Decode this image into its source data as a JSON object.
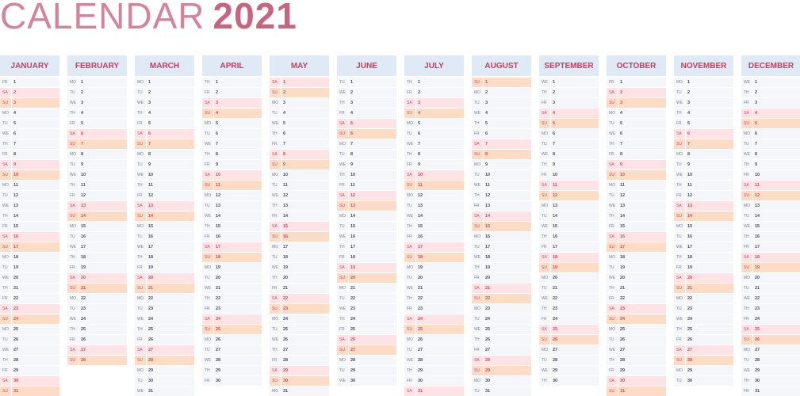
{
  "title": {
    "text": "CALENDAR",
    "year": "2021"
  },
  "weekend_colors": {
    "SA": "#fde3e6",
    "SU": "#fddcc6"
  },
  "months": [
    {
      "name": "JANUARY",
      "days": [
        [
          "FR",
          1
        ],
        [
          "SA",
          2
        ],
        [
          "SU",
          3
        ],
        [
          "MO",
          4
        ],
        [
          "TU",
          5
        ],
        [
          "WE",
          6
        ],
        [
          "TH",
          7
        ],
        [
          "FR",
          8
        ],
        [
          "SA",
          9
        ],
        [
          "SU",
          10
        ],
        [
          "MO",
          11
        ],
        [
          "TU",
          12
        ],
        [
          "WE",
          13
        ],
        [
          "TH",
          14
        ],
        [
          "FR",
          15
        ],
        [
          "SA",
          16
        ],
        [
          "SU",
          17
        ],
        [
          "MO",
          18
        ],
        [
          "TU",
          19
        ],
        [
          "WE",
          20
        ],
        [
          "TH",
          21
        ],
        [
          "FR",
          22
        ],
        [
          "SA",
          23
        ],
        [
          "SU",
          24
        ],
        [
          "MO",
          25
        ],
        [
          "TU",
          26
        ],
        [
          "WE",
          27
        ],
        [
          "TH",
          28
        ],
        [
          "FR",
          29
        ],
        [
          "SA",
          30
        ],
        [
          "SU",
          31
        ]
      ]
    },
    {
      "name": "FEBRUARY",
      "days": [
        [
          "MO",
          1
        ],
        [
          "TU",
          2
        ],
        [
          "WE",
          3
        ],
        [
          "TH",
          4
        ],
        [
          "FR",
          5
        ],
        [
          "SA",
          6
        ],
        [
          "SU",
          7
        ],
        [
          "MO",
          8
        ],
        [
          "TU",
          9
        ],
        [
          "WE",
          10
        ],
        [
          "TH",
          11
        ],
        [
          "FR",
          12
        ],
        [
          "SA",
          13
        ],
        [
          "SU",
          14
        ],
        [
          "MO",
          15
        ],
        [
          "TU",
          16
        ],
        [
          "WE",
          17
        ],
        [
          "TH",
          18
        ],
        [
          "FR",
          19
        ],
        [
          "SA",
          20
        ],
        [
          "SU",
          21
        ],
        [
          "MO",
          22
        ],
        [
          "TU",
          23
        ],
        [
          "WE",
          24
        ],
        [
          "TH",
          25
        ],
        [
          "FR",
          26
        ],
        [
          "SA",
          27
        ],
        [
          "SU",
          28
        ]
      ]
    },
    {
      "name": "MARCH",
      "days": [
        [
          "MO",
          1
        ],
        [
          "TU",
          2
        ],
        [
          "WE",
          3
        ],
        [
          "TH",
          4
        ],
        [
          "FR",
          5
        ],
        [
          "SA",
          6
        ],
        [
          "SU",
          7
        ],
        [
          "MO",
          8
        ],
        [
          "TU",
          9
        ],
        [
          "WE",
          10
        ],
        [
          "TH",
          11
        ],
        [
          "FR",
          12
        ],
        [
          "SA",
          13
        ],
        [
          "SU",
          14
        ],
        [
          "MO",
          15
        ],
        [
          "TU",
          16
        ],
        [
          "WE",
          17
        ],
        [
          "TH",
          18
        ],
        [
          "FR",
          19
        ],
        [
          "SA",
          20
        ],
        [
          "SU",
          21
        ],
        [
          "MO",
          22
        ],
        [
          "TU",
          23
        ],
        [
          "WE",
          24
        ],
        [
          "TH",
          25
        ],
        [
          "FR",
          26
        ],
        [
          "SA",
          27
        ],
        [
          "SU",
          28
        ],
        [
          "MO",
          29
        ],
        [
          "TU",
          30
        ],
        [
          "WE",
          31
        ]
      ]
    },
    {
      "name": "APRIL",
      "days": [
        [
          "TH",
          1
        ],
        [
          "FR",
          2
        ],
        [
          "SA",
          3
        ],
        [
          "SU",
          4
        ],
        [
          "MO",
          5
        ],
        [
          "TU",
          6
        ],
        [
          "WE",
          7
        ],
        [
          "TH",
          8
        ],
        [
          "FR",
          9
        ],
        [
          "SA",
          10
        ],
        [
          "SU",
          11
        ],
        [
          "MO",
          12
        ],
        [
          "TU",
          13
        ],
        [
          "WE",
          14
        ],
        [
          "TH",
          15
        ],
        [
          "FR",
          16
        ],
        [
          "SA",
          17
        ],
        [
          "SU",
          18
        ],
        [
          "MO",
          19
        ],
        [
          "TU",
          20
        ],
        [
          "WE",
          21
        ],
        [
          "TH",
          22
        ],
        [
          "FR",
          23
        ],
        [
          "SA",
          24
        ],
        [
          "SU",
          25
        ],
        [
          "MO",
          26
        ],
        [
          "TU",
          27
        ],
        [
          "WE",
          28
        ],
        [
          "TH",
          29
        ],
        [
          "FR",
          30
        ]
      ]
    },
    {
      "name": "MAY",
      "days": [
        [
          "SA",
          1
        ],
        [
          "SU",
          2
        ],
        [
          "MO",
          3
        ],
        [
          "TU",
          4
        ],
        [
          "WE",
          5
        ],
        [
          "TH",
          6
        ],
        [
          "FR",
          7
        ],
        [
          "SA",
          8
        ],
        [
          "SU",
          9
        ],
        [
          "MO",
          10
        ],
        [
          "TU",
          11
        ],
        [
          "WE",
          12
        ],
        [
          "TH",
          13
        ],
        [
          "FR",
          14
        ],
        [
          "SA",
          15
        ],
        [
          "SU",
          16
        ],
        [
          "MO",
          17
        ],
        [
          "TU",
          18
        ],
        [
          "WE",
          19
        ],
        [
          "TH",
          20
        ],
        [
          "FR",
          21
        ],
        [
          "SA",
          22
        ],
        [
          "SU",
          23
        ],
        [
          "MO",
          24
        ],
        [
          "TU",
          25
        ],
        [
          "WE",
          26
        ],
        [
          "TH",
          27
        ],
        [
          "FR",
          28
        ],
        [
          "SA",
          29
        ],
        [
          "SU",
          30
        ],
        [
          "MO",
          31
        ]
      ]
    },
    {
      "name": "JUNE",
      "days": [
        [
          "TU",
          1
        ],
        [
          "WE",
          2
        ],
        [
          "TH",
          3
        ],
        [
          "FR",
          4
        ],
        [
          "SA",
          5
        ],
        [
          "SU",
          6
        ],
        [
          "MO",
          7
        ],
        [
          "TU",
          8
        ],
        [
          "WE",
          9
        ],
        [
          "TH",
          10
        ],
        [
          "FR",
          11
        ],
        [
          "SA",
          12
        ],
        [
          "SU",
          13
        ],
        [
          "MO",
          14
        ],
        [
          "TU",
          15
        ],
        [
          "WE",
          16
        ],
        [
          "TH",
          17
        ],
        [
          "FR",
          18
        ],
        [
          "SA",
          19
        ],
        [
          "SU",
          20
        ],
        [
          "MO",
          21
        ],
        [
          "TU",
          22
        ],
        [
          "WE",
          23
        ],
        [
          "TH",
          24
        ],
        [
          "FR",
          25
        ],
        [
          "SA",
          26
        ],
        [
          "SU",
          27
        ],
        [
          "MO",
          28
        ],
        [
          "TU",
          29
        ],
        [
          "WE",
          30
        ]
      ]
    },
    {
      "name": "JULY",
      "days": [
        [
          "TH",
          1
        ],
        [
          "FR",
          2
        ],
        [
          "SA",
          3
        ],
        [
          "SU",
          4
        ],
        [
          "MO",
          5
        ],
        [
          "TU",
          6
        ],
        [
          "WE",
          7
        ],
        [
          "TH",
          8
        ],
        [
          "FR",
          9
        ],
        [
          "SA",
          10
        ],
        [
          "SU",
          11
        ],
        [
          "MO",
          12
        ],
        [
          "TU",
          13
        ],
        [
          "WE",
          14
        ],
        [
          "TH",
          15
        ],
        [
          "FR",
          16
        ],
        [
          "SA",
          17
        ],
        [
          "SU",
          18
        ],
        [
          "MO",
          19
        ],
        [
          "TU",
          20
        ],
        [
          "WE",
          21
        ],
        [
          "TH",
          22
        ],
        [
          "FR",
          23
        ],
        [
          "SA",
          24
        ],
        [
          "SU",
          25
        ],
        [
          "MO",
          26
        ],
        [
          "TU",
          27
        ],
        [
          "WE",
          28
        ],
        [
          "TH",
          29
        ],
        [
          "FR",
          30
        ],
        [
          "SA",
          31
        ]
      ]
    },
    {
      "name": "AUGUST",
      "days": [
        [
          "SU",
          1
        ],
        [
          "MO",
          2
        ],
        [
          "TU",
          3
        ],
        [
          "WE",
          4
        ],
        [
          "TH",
          5
        ],
        [
          "FR",
          6
        ],
        [
          "SA",
          7
        ],
        [
          "SU",
          8
        ],
        [
          "MO",
          9
        ],
        [
          "TU",
          10
        ],
        [
          "WE",
          11
        ],
        [
          "TH",
          12
        ],
        [
          "FR",
          13
        ],
        [
          "SA",
          14
        ],
        [
          "SU",
          15
        ],
        [
          "MO",
          16
        ],
        [
          "TU",
          17
        ],
        [
          "WE",
          18
        ],
        [
          "TH",
          19
        ],
        [
          "FR",
          20
        ],
        [
          "SA",
          21
        ],
        [
          "SU",
          22
        ],
        [
          "MO",
          23
        ],
        [
          "TU",
          24
        ],
        [
          "WE",
          25
        ],
        [
          "TH",
          26
        ],
        [
          "FR",
          27
        ],
        [
          "SA",
          28
        ],
        [
          "SU",
          29
        ],
        [
          "MO",
          30
        ],
        [
          "TU",
          31
        ]
      ]
    },
    {
      "name": "SEPTEMBER",
      "days": [
        [
          "WE",
          1
        ],
        [
          "TH",
          2
        ],
        [
          "FR",
          3
        ],
        [
          "SA",
          4
        ],
        [
          "SU",
          5
        ],
        [
          "MO",
          6
        ],
        [
          "TU",
          7
        ],
        [
          "WE",
          8
        ],
        [
          "TH",
          9
        ],
        [
          "FR",
          10
        ],
        [
          "SA",
          11
        ],
        [
          "SU",
          12
        ],
        [
          "MO",
          13
        ],
        [
          "TU",
          14
        ],
        [
          "WE",
          15
        ],
        [
          "TH",
          16
        ],
        [
          "FR",
          17
        ],
        [
          "SA",
          18
        ],
        [
          "SU",
          19
        ],
        [
          "MO",
          20
        ],
        [
          "TU",
          21
        ],
        [
          "WE",
          22
        ],
        [
          "TH",
          23
        ],
        [
          "FR",
          24
        ],
        [
          "SA",
          25
        ],
        [
          "SU",
          26
        ],
        [
          "MO",
          27
        ],
        [
          "TU",
          28
        ],
        [
          "WE",
          29
        ],
        [
          "TH",
          30
        ]
      ]
    },
    {
      "name": "OCTOBER",
      "days": [
        [
          "FR",
          1
        ],
        [
          "SA",
          2
        ],
        [
          "SU",
          3
        ],
        [
          "MO",
          4
        ],
        [
          "TU",
          5
        ],
        [
          "WE",
          6
        ],
        [
          "TH",
          7
        ],
        [
          "FR",
          8
        ],
        [
          "SA",
          9
        ],
        [
          "SU",
          10
        ],
        [
          "MO",
          11
        ],
        [
          "TU",
          12
        ],
        [
          "WE",
          13
        ],
        [
          "TH",
          14
        ],
        [
          "FR",
          15
        ],
        [
          "SA",
          16
        ],
        [
          "SU",
          17
        ],
        [
          "MO",
          18
        ],
        [
          "TU",
          19
        ],
        [
          "WE",
          20
        ],
        [
          "TH",
          21
        ],
        [
          "FR",
          22
        ],
        [
          "SA",
          23
        ],
        [
          "SU",
          24
        ],
        [
          "MO",
          25
        ],
        [
          "TU",
          26
        ],
        [
          "WE",
          27
        ],
        [
          "TH",
          28
        ],
        [
          "FR",
          29
        ],
        [
          "SA",
          30
        ],
        [
          "SU",
          31
        ]
      ]
    },
    {
      "name": "NOVEMBER",
      "days": [
        [
          "MO",
          1
        ],
        [
          "TU",
          2
        ],
        [
          "WE",
          3
        ],
        [
          "TH",
          4
        ],
        [
          "FR",
          5
        ],
        [
          "SA",
          6
        ],
        [
          "SU",
          7
        ],
        [
          "MO",
          8
        ],
        [
          "TU",
          9
        ],
        [
          "WE",
          10
        ],
        [
          "TH",
          11
        ],
        [
          "FR",
          12
        ],
        [
          "SA",
          13
        ],
        [
          "SU",
          14
        ],
        [
          "MO",
          15
        ],
        [
          "TU",
          16
        ],
        [
          "WE",
          17
        ],
        [
          "TH",
          18
        ],
        [
          "FR",
          19
        ],
        [
          "SA",
          20
        ],
        [
          "SU",
          21
        ],
        [
          "MO",
          22
        ],
        [
          "TU",
          23
        ],
        [
          "WE",
          24
        ],
        [
          "TH",
          25
        ],
        [
          "FR",
          26
        ],
        [
          "SA",
          27
        ],
        [
          "SU",
          28
        ],
        [
          "MO",
          29
        ],
        [
          "TU",
          30
        ]
      ]
    },
    {
      "name": "DECEMBER",
      "days": [
        [
          "WE",
          1
        ],
        [
          "TH",
          2
        ],
        [
          "FR",
          3
        ],
        [
          "SA",
          4
        ],
        [
          "SU",
          5
        ],
        [
          "MO",
          6
        ],
        [
          "TU",
          7
        ],
        [
          "WE",
          8
        ],
        [
          "TH",
          9
        ],
        [
          "FR",
          10
        ],
        [
          "SA",
          11
        ],
        [
          "SU",
          12
        ],
        [
          "MO",
          13
        ],
        [
          "TU",
          14
        ],
        [
          "WE",
          15
        ],
        [
          "TH",
          16
        ],
        [
          "FR",
          17
        ],
        [
          "SA",
          18
        ],
        [
          "SU",
          19
        ],
        [
          "MO",
          20
        ],
        [
          "TU",
          21
        ],
        [
          "WE",
          22
        ],
        [
          "TH",
          23
        ],
        [
          "FR",
          24
        ],
        [
          "SA",
          25
        ],
        [
          "SU",
          26
        ],
        [
          "MO",
          27
        ],
        [
          "TU",
          28
        ],
        [
          "WE",
          29
        ],
        [
          "TH",
          30
        ],
        [
          "FR",
          31
        ]
      ]
    }
  ]
}
